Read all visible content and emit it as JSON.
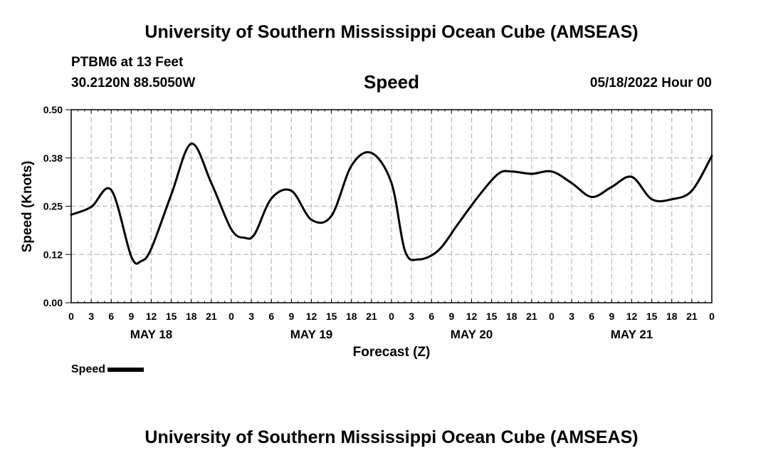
{
  "header": {
    "title": "University of Southern Mississippi Ocean Cube (AMSEAS)",
    "station": "PTBM6 at 13 Feet",
    "coords": "30.2120N  88.5050W",
    "variable": "Speed",
    "datetime": "05/18/2022 Hour 00"
  },
  "footer": {
    "title": "University of Southern Mississippi Ocean Cube (AMSEAS)"
  },
  "chart_data": {
    "type": "line",
    "title": "Speed",
    "xlabel": "Forecast (Z)",
    "ylabel": "Speed (Knots)",
    "ylim": [
      0,
      0.5
    ],
    "xlim": [
      0,
      96
    ],
    "grid": true,
    "y_ticks": [
      0.0,
      0.125,
      0.25,
      0.375,
      0.5
    ],
    "y_tick_labels": [
      "0.00",
      "0.12",
      "0.25",
      "0.38",
      "0.50"
    ],
    "x_ticks": [
      0,
      3,
      6,
      9,
      12,
      15,
      18,
      21,
      24,
      27,
      30,
      33,
      36,
      39,
      42,
      45,
      48,
      51,
      54,
      57,
      60,
      63,
      66,
      69,
      72,
      75,
      78,
      81,
      84,
      87,
      90,
      93,
      96
    ],
    "x_tick_labels": [
      "0",
      "3",
      "6",
      "9",
      "12",
      "15",
      "18",
      "21",
      "0",
      "3",
      "6",
      "9",
      "12",
      "15",
      "18",
      "21",
      "0",
      "3",
      "6",
      "9",
      "12",
      "15",
      "18",
      "21",
      "0",
      "3",
      "6",
      "9",
      "12",
      "15",
      "18",
      "21",
      "0"
    ],
    "day_labels": [
      {
        "label": "MAY 18",
        "x": 12
      },
      {
        "label": "MAY 19",
        "x": 36
      },
      {
        "label": "MAY 20",
        "x": 60
      },
      {
        "label": "MAY 21",
        "x": 84
      }
    ],
    "legend_position": "bottom-left",
    "series": [
      {
        "name": "Speed",
        "color": "#000000",
        "x": [
          0,
          3,
          6,
          9,
          10.5,
          12,
          15,
          18,
          21,
          24,
          26,
          27.5,
          30,
          33,
          36,
          39,
          42,
          45,
          48,
          50,
          52,
          55,
          58,
          61,
          64,
          66,
          69,
          72,
          75,
          78,
          81,
          84,
          87,
          90,
          93,
          96
        ],
        "values": [
          0.228,
          0.248,
          0.292,
          0.12,
          0.108,
          0.14,
          0.28,
          0.412,
          0.31,
          0.19,
          0.168,
          0.178,
          0.27,
          0.29,
          0.215,
          0.225,
          0.355,
          0.388,
          0.31,
          0.135,
          0.112,
          0.135,
          0.205,
          0.275,
          0.334,
          0.34,
          0.334,
          0.34,
          0.31,
          0.274,
          0.3,
          0.326,
          0.268,
          0.268,
          0.29,
          0.38
        ]
      }
    ]
  }
}
